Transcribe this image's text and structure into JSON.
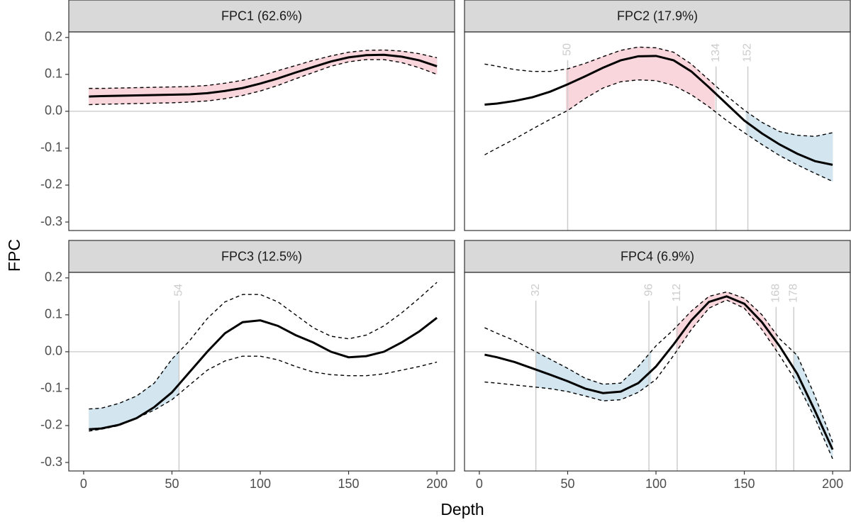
{
  "chart_data": {
    "type": "facet_line",
    "xlabel": "Depth",
    "ylabel": "FPC",
    "xlim": [
      -8.4,
      210
    ],
    "ylim": [
      -0.323,
      0.215
    ],
    "xticks": [
      0,
      50,
      100,
      150,
      200
    ],
    "yticks": [
      -0.3,
      -0.2,
      -0.1,
      {
        "value": 0,
        "label": "0.0"
      },
      0.1,
      0.2
    ],
    "hline": 0,
    "line_color": "#000000",
    "vline_color": "#cccccc",
    "band_colors": {
      "positive": "#f9d5dc",
      "negative": "#d3e6ef"
    },
    "x": [
      3,
      10,
      20,
      30,
      40,
      50,
      60,
      70,
      80,
      90,
      100,
      110,
      120,
      130,
      140,
      150,
      160,
      170,
      180,
      190,
      200
    ],
    "panels": [
      {
        "title": "FPC1 (62.6%)",
        "values": [
          0.04,
          0.041,
          0.042,
          0.043,
          0.044,
          0.045,
          0.046,
          0.049,
          0.055,
          0.063,
          0.075,
          0.089,
          0.105,
          0.12,
          0.135,
          0.146,
          0.152,
          0.153,
          0.148,
          0.138,
          0.122
        ],
        "lower": [
          0.018,
          0.019,
          0.02,
          0.021,
          0.022,
          0.023,
          0.025,
          0.028,
          0.034,
          0.043,
          0.055,
          0.07,
          0.088,
          0.105,
          0.122,
          0.134,
          0.14,
          0.14,
          0.132,
          0.118,
          0.1
        ],
        "upper": [
          0.062,
          0.062,
          0.063,
          0.064,
          0.065,
          0.066,
          0.067,
          0.07,
          0.076,
          0.084,
          0.096,
          0.11,
          0.124,
          0.138,
          0.15,
          0.16,
          0.165,
          0.166,
          0.163,
          0.156,
          0.145
        ],
        "vlines": []
      },
      {
        "title": "FPC2 (17.9%)",
        "values": [
          0.018,
          0.021,
          0.028,
          0.038,
          0.053,
          0.073,
          0.095,
          0.118,
          0.138,
          0.149,
          0.15,
          0.138,
          0.108,
          0.065,
          0.02,
          -0.025,
          -0.06,
          -0.09,
          -0.115,
          -0.135,
          -0.145
        ],
        "lower": [
          -0.118,
          -0.1,
          -0.075,
          -0.048,
          -0.022,
          0.002,
          0.035,
          0.063,
          0.08,
          0.085,
          0.083,
          0.07,
          0.045,
          0.012,
          -0.025,
          -0.058,
          -0.09,
          -0.12,
          -0.145,
          -0.168,
          -0.19
        ],
        "upper": [
          0.128,
          0.122,
          0.113,
          0.108,
          0.108,
          0.115,
          0.13,
          0.148,
          0.165,
          0.174,
          0.172,
          0.16,
          0.128,
          0.085,
          0.042,
          0.003,
          -0.03,
          -0.055,
          -0.065,
          -0.068,
          -0.058
        ],
        "vlines": [
          50,
          134,
          152
        ]
      },
      {
        "title": "FPC3 (12.5%)",
        "values": [
          -0.21,
          -0.208,
          -0.198,
          -0.18,
          -0.15,
          -0.11,
          -0.055,
          0.0,
          0.05,
          0.08,
          0.085,
          0.07,
          0.045,
          0.025,
          0.0,
          -0.015,
          -0.012,
          0.0,
          0.025,
          0.055,
          0.092
        ],
        "lower": [
          -0.215,
          -0.21,
          -0.2,
          -0.18,
          -0.158,
          -0.13,
          -0.09,
          -0.05,
          -0.025,
          -0.012,
          -0.012,
          -0.022,
          -0.04,
          -0.055,
          -0.062,
          -0.065,
          -0.065,
          -0.06,
          -0.05,
          -0.04,
          -0.028
        ],
        "upper": [
          -0.155,
          -0.153,
          -0.14,
          -0.12,
          -0.085,
          -0.02,
          0.03,
          0.09,
          0.135,
          0.155,
          0.155,
          0.135,
          0.1,
          0.065,
          0.042,
          0.035,
          0.045,
          0.07,
          0.105,
          0.145,
          0.188
        ],
        "vlines": [
          54
        ]
      },
      {
        "title": "FPC4 (6.9%)",
        "values": [
          -0.008,
          -0.015,
          -0.028,
          -0.045,
          -0.062,
          -0.08,
          -0.1,
          -0.112,
          -0.108,
          -0.085,
          -0.04,
          0.02,
          0.085,
          0.135,
          0.15,
          0.13,
          0.08,
          0.015,
          -0.06,
          -0.16,
          -0.265
        ],
        "lower": [
          -0.082,
          -0.085,
          -0.09,
          -0.095,
          -0.1,
          -0.108,
          -0.12,
          -0.133,
          -0.13,
          -0.11,
          -0.075,
          -0.01,
          0.06,
          0.118,
          0.14,
          0.118,
          0.06,
          -0.01,
          -0.085,
          -0.18,
          -0.29
        ],
        "upper": [
          0.065,
          0.05,
          0.03,
          0.005,
          -0.02,
          -0.045,
          -0.072,
          -0.088,
          -0.085,
          -0.04,
          0.016,
          0.06,
          0.11,
          0.15,
          0.162,
          0.145,
          0.1,
          0.035,
          -0.01,
          -0.12,
          -0.245
        ],
        "vlines": [
          32,
          96,
          112,
          168,
          178
        ]
      }
    ]
  }
}
